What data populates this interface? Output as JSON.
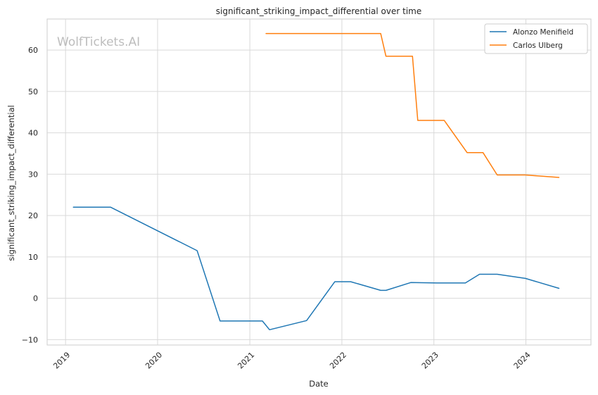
{
  "chart_data": {
    "type": "line",
    "title": "significant_striking_impact_differential over time",
    "xlabel": "Date",
    "ylabel": "significant_striking_impact_differential",
    "watermark": "WolfTickets.AI",
    "xlim": [
      "2018-10-20",
      "2024-09-15"
    ],
    "ylim": [
      -11.3,
      67.5
    ],
    "x_ticks": [
      "2019-01-01",
      "2020-01-01",
      "2021-01-01",
      "2022-01-01",
      "2023-01-01",
      "2024-01-01"
    ],
    "x_tick_labels": [
      "2019",
      "2020",
      "2021",
      "2022",
      "2023",
      "2024"
    ],
    "y_ticks": [
      -10,
      0,
      10,
      20,
      30,
      40,
      50,
      60
    ],
    "y_tick_labels": [
      "−10",
      "0",
      "10",
      "20",
      "30",
      "40",
      "50",
      "60"
    ],
    "grid": true,
    "legend": "top-right",
    "series": [
      {
        "name": "Alonzo Menifield",
        "color": "#1f77b4",
        "points": [
          [
            "2019-02-01",
            22.0
          ],
          [
            "2019-06-29",
            22.0
          ],
          [
            "2020-06-06",
            11.5
          ],
          [
            "2020-09-05",
            -5.5
          ],
          [
            "2021-02-20",
            -5.5
          ],
          [
            "2021-03-20",
            -7.6
          ],
          [
            "2021-08-14",
            -5.4
          ],
          [
            "2021-12-04",
            4.0
          ],
          [
            "2022-02-05",
            4.0
          ],
          [
            "2022-06-04",
            1.9
          ],
          [
            "2022-06-25",
            1.9
          ],
          [
            "2022-10-01",
            3.8
          ],
          [
            "2023-01-14",
            3.7
          ],
          [
            "2023-05-06",
            3.7
          ],
          [
            "2023-07-01",
            5.8
          ],
          [
            "2023-09-09",
            5.8
          ],
          [
            "2023-12-30",
            4.8
          ],
          [
            "2024-05-11",
            2.4
          ]
        ]
      },
      {
        "name": "Carlos Ulberg",
        "color": "#ff7f0e",
        "points": [
          [
            "2021-03-06",
            64.0
          ],
          [
            "2022-06-04",
            64.0
          ],
          [
            "2022-06-25",
            58.5
          ],
          [
            "2022-10-08",
            58.5
          ],
          [
            "2022-10-29",
            43.0
          ],
          [
            "2023-02-11",
            43.0
          ],
          [
            "2023-05-13",
            35.2
          ],
          [
            "2023-07-15",
            35.2
          ],
          [
            "2023-09-09",
            29.8
          ],
          [
            "2023-12-30",
            29.8
          ],
          [
            "2024-05-11",
            29.2
          ]
        ]
      }
    ]
  }
}
